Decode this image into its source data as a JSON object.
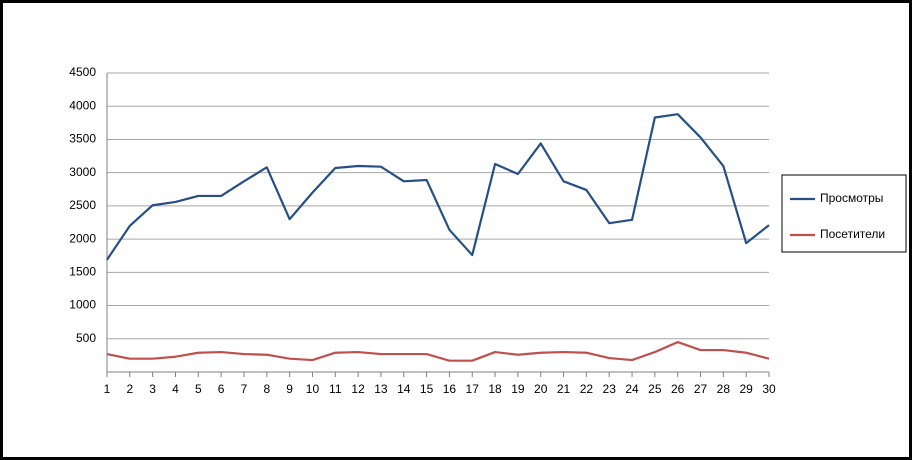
{
  "chart_data": {
    "type": "line",
    "categories": [
      "1",
      "2",
      "3",
      "4",
      "5",
      "6",
      "7",
      "8",
      "9",
      "10",
      "11",
      "12",
      "13",
      "14",
      "15",
      "16",
      "17",
      "18",
      "19",
      "20",
      "21",
      "22",
      "23",
      "24",
      "25",
      "26",
      "27",
      "28",
      "29",
      "30"
    ],
    "series": [
      {
        "name": "Просмотры",
        "color": "#264f86",
        "values": [
          1690,
          2200,
          2510,
          2560,
          2650,
          2650,
          2870,
          3080,
          2300,
          2700,
          3070,
          3100,
          3090,
          2870,
          2890,
          2140,
          1760,
          3130,
          2980,
          3440,
          2870,
          2740,
          2240,
          2290,
          3830,
          3880,
          3530,
          3100,
          1940,
          2210
        ]
      },
      {
        "name": "Посетители",
        "color": "#c0504d",
        "values": [
          270,
          200,
          200,
          230,
          290,
          300,
          270,
          260,
          200,
          180,
          290,
          300,
          270,
          270,
          270,
          170,
          170,
          300,
          260,
          290,
          300,
          290,
          210,
          180,
          300,
          450,
          330,
          330,
          290,
          200
        ]
      }
    ],
    "ylim": [
      0,
      4500
    ],
    "yticks": [
      500,
      1000,
      1500,
      2000,
      2500,
      3000,
      3500,
      4000,
      4500
    ],
    "grid": true,
    "legend": "right"
  }
}
